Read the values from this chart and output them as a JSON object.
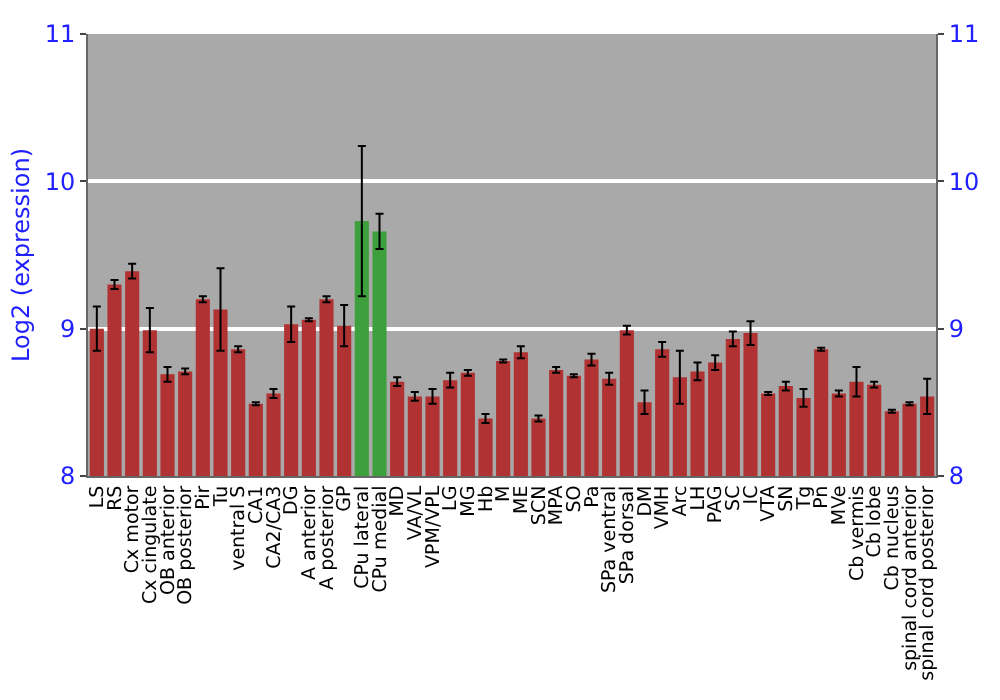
{
  "chart_data": {
    "type": "bar",
    "ylabel": "Log2 (expression)",
    "categories": [
      "LS",
      "RS",
      "Cx motor",
      "Cx cingulate",
      "OB anterior",
      "OB posterior",
      "Pir",
      "Tu",
      "ventral S",
      "CA1",
      "CA2/CA3",
      "DG",
      "A anterior",
      "A posterior",
      "GP",
      "CPu lateral",
      "CPu medial",
      "MD",
      "VA/VL",
      "VPM/VPL",
      "LG",
      "MG",
      "Hb",
      "M",
      "ME",
      "SCN",
      "MPA",
      "SO",
      "Pa",
      "SPa ventral",
      "SPa dorsal",
      "DM",
      "VMH",
      "Arc",
      "LH",
      "PAG",
      "SC",
      "IC",
      "VTA",
      "SN",
      "Tg",
      "Pn",
      "MVe",
      "Cb vermis",
      "Cb lobe",
      "Cb nucleus",
      "spinal cord anterior",
      "spinal cord posterior"
    ],
    "values": [
      9.0,
      9.3,
      9.39,
      8.99,
      8.69,
      8.71,
      9.2,
      9.13,
      8.86,
      8.49,
      8.56,
      9.03,
      9.06,
      9.2,
      9.02,
      9.73,
      9.66,
      8.64,
      8.54,
      8.54,
      8.65,
      8.7,
      8.39,
      8.78,
      8.84,
      8.39,
      8.72,
      8.68,
      8.79,
      8.66,
      8.99,
      8.5,
      8.86,
      8.67,
      8.71,
      8.77,
      8.93,
      8.97,
      8.56,
      8.61,
      8.53,
      8.86,
      8.56,
      8.64,
      8.62,
      8.44,
      8.49,
      8.54
    ],
    "errors": [
      0.15,
      0.03,
      0.05,
      0.15,
      0.05,
      0.02,
      0.02,
      0.28,
      0.02,
      0.01,
      0.03,
      0.12,
      0.01,
      0.02,
      0.14,
      0.51,
      0.12,
      0.03,
      0.03,
      0.05,
      0.05,
      0.02,
      0.03,
      0.01,
      0.04,
      0.02,
      0.02,
      0.01,
      0.04,
      0.04,
      0.03,
      0.08,
      0.05,
      0.18,
      0.06,
      0.05,
      0.05,
      0.08,
      0.01,
      0.03,
      0.06,
      0.01,
      0.02,
      0.1,
      0.02,
      0.01,
      0.01,
      0.12
    ],
    "colors": [
      "#b03232",
      "#b03232",
      "#b03232",
      "#b03232",
      "#b03232",
      "#b03232",
      "#b03232",
      "#b03232",
      "#b03232",
      "#b03232",
      "#b03232",
      "#b03232",
      "#b03232",
      "#b03232",
      "#b03232",
      "#3da03d",
      "#3da03d",
      "#b03232",
      "#b03232",
      "#b03232",
      "#b03232",
      "#b03232",
      "#b03232",
      "#b03232",
      "#b03232",
      "#b03232",
      "#b03232",
      "#b03232",
      "#b03232",
      "#b03232",
      "#b03232",
      "#b03232",
      "#b03232",
      "#b03232",
      "#b03232",
      "#b03232",
      "#b03232",
      "#b03232",
      "#b03232",
      "#b03232",
      "#b03232",
      "#b03232",
      "#b03232",
      "#b03232",
      "#b03232",
      "#b03232",
      "#b03232",
      "#b03232"
    ],
    "ylim": [
      8,
      11
    ],
    "yticks": [
      8,
      9,
      10,
      11
    ],
    "y2lim": [
      8,
      11
    ],
    "y2ticks": [
      8,
      9,
      10,
      11
    ],
    "grid": "y"
  }
}
